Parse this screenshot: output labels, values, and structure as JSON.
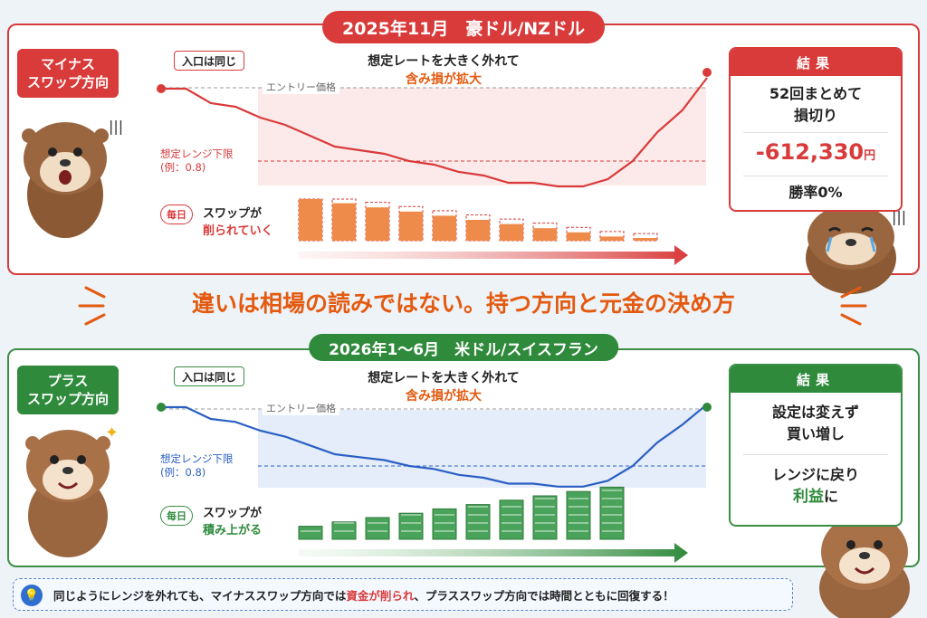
{
  "top": {
    "title": "2025年11月　豪ドル/NZドル",
    "tag_line1": "マイナス",
    "tag_line2": "スワップ方向",
    "entry_label": "入口は同じ",
    "headline_line1": "想定レートを大きく外れて",
    "headline_line2": "含み損が拡大",
    "entry_price_label": "エントリー価格",
    "range_label_line1": "想定レンジ下限",
    "range_label_line2": "(例：0.8)",
    "daily": "毎日",
    "swap_line1": "スワップが",
    "swap_line2": "削られていく",
    "result_title": "結果",
    "result_line1": "52回まとめて",
    "result_line2": "損切り",
    "loss_amount": "-612,330",
    "loss_unit": "円",
    "win_rate": "勝率0%"
  },
  "middle_message": "違いは相場の読みではない。持つ方向と元金の決め方",
  "bottom": {
    "title": "2026年1～6月　米ドル/スイスフラン",
    "tag_line1": "プラス",
    "tag_line2": "スワップ方向",
    "entry_label": "入口は同じ",
    "headline_line1": "想定レートを大きく外れて",
    "headline_line2": "含み損が拡大",
    "entry_price_label": "エントリー価格",
    "range_label_line1": "想定レンジ下限",
    "range_label_line2": "(例：0.8)",
    "daily": "毎日",
    "swap_line1": "スワップが",
    "swap_line2": "積み上がる",
    "result_title": "結果",
    "result_line1": "設定は変えず",
    "result_line2": "買い増し",
    "result_line3": "レンジに戻り",
    "result_line4_accent": "利益",
    "result_line4_tail": "に"
  },
  "footer": {
    "part1": "同じようにレンジを外れても、マイナススワップ方向では",
    "accent": "資金が削られ",
    "part2": "、プラススワップ方向では時間とともに回復する！"
  },
  "colors": {
    "red": "#d93a3a",
    "green": "#2f8a3c",
    "orange": "#e35a10",
    "blue": "#2a5fc4"
  },
  "chart_data": [
    {
      "type": "line",
      "series": [
        {
          "values": [
            1.0,
            1.0,
            0.96,
            0.95,
            0.92,
            0.9,
            0.87,
            0.84,
            0.83,
            0.82,
            0.8,
            0.79,
            0.77,
            0.76,
            0.74,
            0.74,
            0.73,
            0.73,
            0.75,
            0.8,
            0.88,
            0.94,
            1.03
          ]
        }
      ],
      "bars": [
        1.0,
        0.9,
        0.8,
        0.7,
        0.6,
        0.5,
        0.4,
        0.3,
        0.2,
        0.1,
        0.05
      ]
    },
    {
      "type": "line",
      "series": [
        {
          "values": [
            1.0,
            1.0,
            0.96,
            0.95,
            0.92,
            0.9,
            0.87,
            0.84,
            0.83,
            0.82,
            0.8,
            0.79,
            0.77,
            0.76,
            0.74,
            0.74,
            0.73,
            0.73,
            0.75,
            0.8,
            0.88,
            0.94,
            1.01
          ]
        }
      ],
      "bars": [
        0.3,
        0.4,
        0.5,
        0.6,
        0.7,
        0.8,
        0.9,
        1.0,
        1.1,
        1.2
      ]
    }
  ]
}
